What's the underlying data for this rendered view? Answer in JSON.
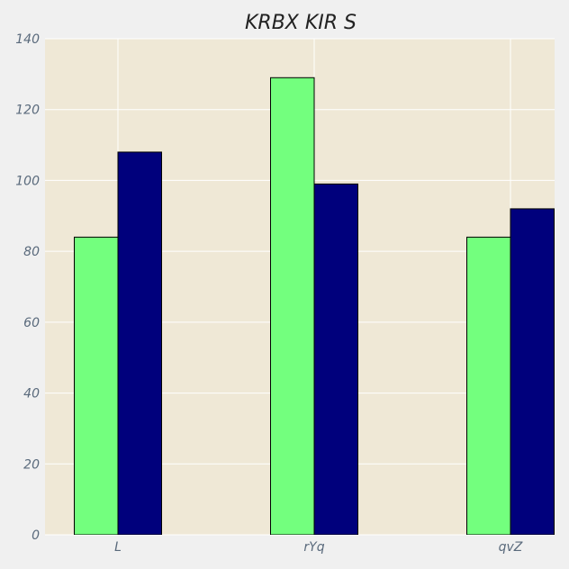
{
  "chart_data": {
    "type": "bar",
    "title": "KRBX  KIR S",
    "xlabel": "",
    "ylabel": "",
    "categories": [
      "L",
      "rYq",
      "qvZ"
    ],
    "series": [
      {
        "values": [
          84,
          129,
          84
        ],
        "color": "#73ff7e"
      },
      {
        "values": [
          108,
          99,
          92
        ],
        "color": "#00007c"
      }
    ],
    "ylim": [
      0,
      140
    ],
    "yticks": [
      0,
      20,
      40,
      60,
      80,
      100,
      120,
      140
    ],
    "grid": true,
    "legend": "none",
    "colors": {
      "plot_background": "#efe8d6",
      "page_background": "#f0f0f0",
      "grid": "#ffffff",
      "bar_edge": "#000000"
    }
  }
}
